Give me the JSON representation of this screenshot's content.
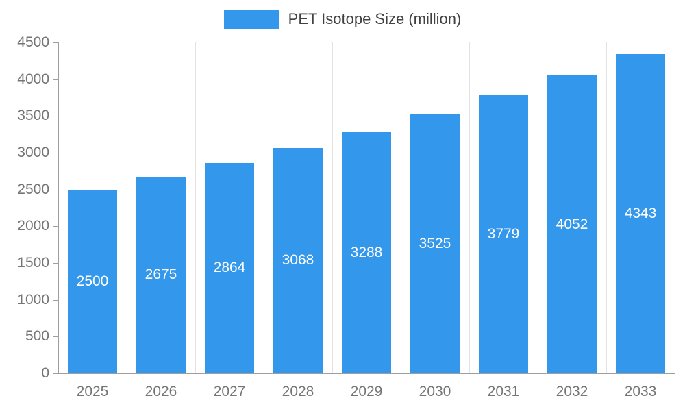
{
  "chart_data": {
    "type": "bar",
    "title": "PET Isotope Size (million)",
    "categories": [
      "2025",
      "2026",
      "2027",
      "2028",
      "2029",
      "2030",
      "2031",
      "2032",
      "2033"
    ],
    "values": [
      2500,
      2675,
      2864,
      3068,
      3288,
      3525,
      3779,
      4052,
      4343
    ],
    "xlabel": "",
    "ylabel": "",
    "ylim": [
      0,
      4500
    ],
    "ytick_step": 500,
    "grid": "vertical-only",
    "legend_position": "top-center",
    "bar_color": "#3398EC",
    "value_label_color": "#ffffff",
    "axis_text_color": "#757575"
  }
}
